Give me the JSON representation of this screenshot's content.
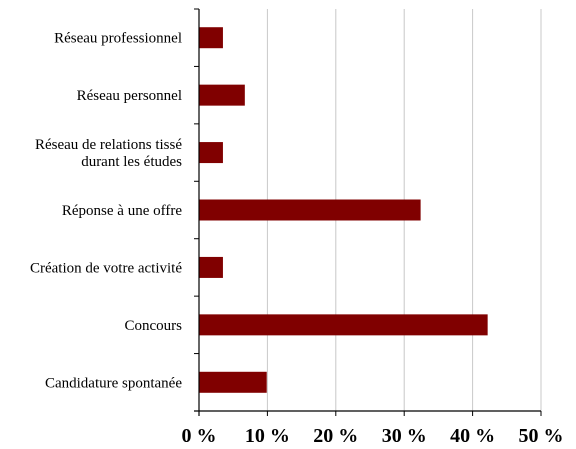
{
  "chart_data": {
    "type": "bar",
    "orientation": "horizontal",
    "categories": [
      [
        "Réseau professionnel"
      ],
      [
        "Réseau personnel"
      ],
      [
        "Réseau de relations tissé",
        "durant les études"
      ],
      [
        "Réponse à une offre"
      ],
      [
        "Création de votre activité"
      ],
      [
        "Concours"
      ],
      [
        "Candidature spontanée"
      ]
    ],
    "values": [
      3.5,
      6.7,
      3.5,
      32.4,
      3.5,
      42.2,
      9.9
    ],
    "xlim": [
      0,
      50
    ],
    "xticks": [
      0,
      10,
      20,
      30,
      40,
      50
    ],
    "xtick_labels": [
      "0 %",
      "10 %",
      "20 %",
      "30 %",
      "40 %",
      "50 %"
    ],
    "grid": "vertical",
    "bar_color": "#800000",
    "title": "",
    "xlabel": "",
    "ylabel": ""
  }
}
